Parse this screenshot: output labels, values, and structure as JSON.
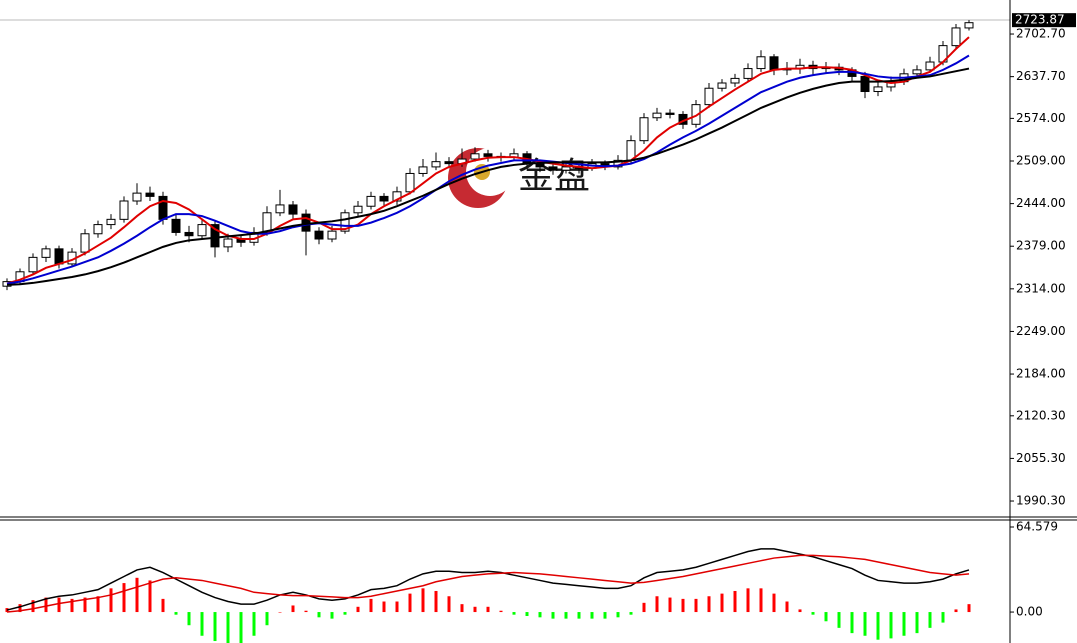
{
  "chart_data": [
    {
      "type": "candlestick",
      "current_price": 2723.87,
      "watermark": "金盘",
      "up_color": "#ffffff",
      "down_color": "#000000",
      "ylim": [
        1964.4,
        2724.1
      ],
      "yticks": [
        {
          "value": 2702.7,
          "label": "2702.70"
        },
        {
          "value": 2637.7,
          "label": "2637.70"
        },
        {
          "value": 2574,
          "label": "2574.00"
        },
        {
          "value": 2509,
          "label": "2509.00"
        },
        {
          "value": 2444,
          "label": "2444.00"
        },
        {
          "value": 2379,
          "label": "2379.00"
        },
        {
          "value": 2314,
          "label": "2314.00"
        },
        {
          "value": 2249,
          "label": "2249.00"
        },
        {
          "value": 2184,
          "label": "2184.00"
        },
        {
          "value": 2120.3,
          "label": "2120.30"
        },
        {
          "value": 2055.3,
          "label": "2055.30"
        },
        {
          "value": 1990.3,
          "label": "1990.30"
        }
      ],
      "candles": [
        [
          2318,
          2330,
          2312,
          2325
        ],
        [
          2325,
          2345,
          2320,
          2340
        ],
        [
          2340,
          2368,
          2335,
          2362
        ],
        [
          2362,
          2380,
          2355,
          2375
        ],
        [
          2375,
          2380,
          2345,
          2352
        ],
        [
          2352,
          2376,
          2348,
          2370
        ],
        [
          2370,
          2405,
          2365,
          2398
        ],
        [
          2398,
          2418,
          2392,
          2412
        ],
        [
          2412,
          2428,
          2405,
          2420
        ],
        [
          2420,
          2455,
          2415,
          2448
        ],
        [
          2448,
          2475,
          2442,
          2460
        ],
        [
          2460,
          2470,
          2448,
          2455
        ],
        [
          2455,
          2462,
          2412,
          2420
        ],
        [
          2420,
          2428,
          2395,
          2400
        ],
        [
          2400,
          2410,
          2385,
          2395
        ],
        [
          2395,
          2420,
          2390,
          2412
        ],
        [
          2412,
          2418,
          2362,
          2378
        ],
        [
          2378,
          2398,
          2370,
          2390
        ],
        [
          2390,
          2395,
          2378,
          2385
        ],
        [
          2385,
          2408,
          2380,
          2400
        ],
        [
          2400,
          2440,
          2395,
          2430
        ],
        [
          2430,
          2465,
          2425,
          2442
        ],
        [
          2442,
          2448,
          2420,
          2428
        ],
        [
          2428,
          2435,
          2365,
          2402
        ],
        [
          2402,
          2408,
          2382,
          2390
        ],
        [
          2390,
          2410,
          2385,
          2402
        ],
        [
          2402,
          2435,
          2398,
          2430
        ],
        [
          2430,
          2448,
          2425,
          2440
        ],
        [
          2440,
          2462,
          2435,
          2455
        ],
        [
          2455,
          2460,
          2440,
          2448
        ],
        [
          2448,
          2470,
          2442,
          2462
        ],
        [
          2462,
          2498,
          2458,
          2490
        ],
        [
          2490,
          2512,
          2485,
          2500
        ],
        [
          2500,
          2522,
          2495,
          2508
        ],
        [
          2508,
          2515,
          2498,
          2505
        ],
        [
          2505,
          2528,
          2500,
          2512
        ],
        [
          2512,
          2530,
          2508,
          2520
        ],
        [
          2520,
          2526,
          2508,
          2516
        ],
        [
          2516,
          2522,
          2508,
          2515
        ],
        [
          2515,
          2528,
          2510,
          2520
        ],
        [
          2520,
          2524,
          2500,
          2505
        ],
        [
          2505,
          2510,
          2492,
          2500
        ],
        [
          2500,
          2504,
          2488,
          2495
        ],
        [
          2495,
          2508,
          2490,
          2500
        ],
        [
          2500,
          2504,
          2490,
          2498
        ],
        [
          2498,
          2512,
          2494,
          2505
        ],
        [
          2505,
          2510,
          2495,
          2500
        ],
        [
          2500,
          2518,
          2496,
          2510
        ],
        [
          2510,
          2548,
          2506,
          2540
        ],
        [
          2540,
          2582,
          2535,
          2575
        ],
        [
          2575,
          2590,
          2570,
          2582
        ],
        [
          2582,
          2588,
          2574,
          2580
        ],
        [
          2580,
          2585,
          2558,
          2565
        ],
        [
          2565,
          2602,
          2560,
          2595
        ],
        [
          2595,
          2628,
          2590,
          2620
        ],
        [
          2620,
          2634,
          2615,
          2628
        ],
        [
          2628,
          2642,
          2622,
          2635
        ],
        [
          2635,
          2658,
          2630,
          2650
        ],
        [
          2650,
          2678,
          2645,
          2668
        ],
        [
          2668,
          2672,
          2640,
          2648
        ],
        [
          2648,
          2660,
          2640,
          2650
        ],
        [
          2650,
          2665,
          2642,
          2655
        ],
        [
          2655,
          2662,
          2640,
          2650
        ],
        [
          2650,
          2660,
          2642,
          2652
        ],
        [
          2652,
          2658,
          2640,
          2648
        ],
        [
          2648,
          2652,
          2630,
          2638
        ],
        [
          2638,
          2645,
          2605,
          2615
        ],
        [
          2615,
          2630,
          2608,
          2622
        ],
        [
          2622,
          2638,
          2615,
          2630
        ],
        [
          2630,
          2650,
          2625,
          2642
        ],
        [
          2642,
          2655,
          2638,
          2648
        ],
        [
          2648,
          2668,
          2644,
          2660
        ],
        [
          2660,
          2692,
          2655,
          2685
        ],
        [
          2685,
          2718,
          2680,
          2712
        ],
        [
          2712,
          2724,
          2708,
          2720
        ]
      ],
      "lines": [
        {
          "color": "#e00000",
          "values": [
            2322,
            2328,
            2336,
            2346,
            2352,
            2358,
            2368,
            2380,
            2392,
            2408,
            2425,
            2440,
            2448,
            2445,
            2435,
            2420,
            2405,
            2395,
            2390,
            2390,
            2398,
            2410,
            2420,
            2422,
            2415,
            2405,
            2405,
            2412,
            2428,
            2440,
            2450,
            2460,
            2475,
            2490,
            2500,
            2505,
            2510,
            2514,
            2515,
            2515,
            2512,
            2508,
            2505,
            2502,
            2500,
            2498,
            2500,
            2502,
            2510,
            2525,
            2545,
            2560,
            2570,
            2578,
            2592,
            2605,
            2618,
            2630,
            2642,
            2648,
            2650,
            2650,
            2652,
            2652,
            2651,
            2648,
            2640,
            2632,
            2628,
            2630,
            2638,
            2645,
            2660,
            2680,
            2698
          ]
        },
        {
          "color": "#0000d0",
          "values": [
            2322,
            2325,
            2330,
            2336,
            2342,
            2348,
            2355,
            2362,
            2372,
            2383,
            2395,
            2408,
            2420,
            2428,
            2428,
            2425,
            2418,
            2410,
            2402,
            2398,
            2398,
            2402,
            2408,
            2412,
            2414,
            2412,
            2410,
            2410,
            2415,
            2422,
            2430,
            2440,
            2452,
            2465,
            2478,
            2488,
            2496,
            2502,
            2506,
            2510,
            2510,
            2510,
            2508,
            2506,
            2504,
            2502,
            2501,
            2502,
            2505,
            2512,
            2522,
            2534,
            2545,
            2555,
            2566,
            2578,
            2590,
            2602,
            2614,
            2622,
            2630,
            2636,
            2640,
            2643,
            2645,
            2645,
            2642,
            2638,
            2636,
            2636,
            2638,
            2640,
            2648,
            2658,
            2670
          ]
        },
        {
          "color": "#000000",
          "values": [
            2320,
            2321,
            2323,
            2326,
            2329,
            2332,
            2336,
            2341,
            2347,
            2354,
            2362,
            2370,
            2378,
            2384,
            2388,
            2390,
            2392,
            2394,
            2396,
            2398,
            2402,
            2406,
            2410,
            2413,
            2415,
            2417,
            2420,
            2424,
            2428,
            2433,
            2440,
            2448,
            2456,
            2465,
            2474,
            2482,
            2489,
            2495,
            2500,
            2503,
            2505,
            2506,
            2507,
            2507,
            2507,
            2507,
            2507,
            2508,
            2510,
            2514,
            2520,
            2527,
            2534,
            2542,
            2551,
            2560,
            2570,
            2580,
            2590,
            2598,
            2606,
            2613,
            2619,
            2624,
            2628,
            2630,
            2630,
            2630,
            2631,
            2633,
            2636,
            2638,
            2642,
            2646,
            2650
          ]
        }
      ]
    },
    {
      "type": "macd",
      "positive_color": "#ff0000",
      "negative_color": "#00ff00",
      "ylim": [
        -23.5,
        69.9
      ],
      "yticks": [
        64.579,
        {
          "value": 0,
          "label": "0.00"
        }
      ],
      "histogram": [
        3,
        6,
        9,
        11,
        11,
        10,
        11,
        12,
        18,
        22,
        26,
        24,
        10,
        -2,
        -10,
        -18,
        -22,
        -24,
        -24,
        -18,
        -10,
        0,
        5,
        1,
        -4,
        -5,
        -2,
        4,
        10,
        8,
        8,
        14,
        18,
        16,
        12,
        6,
        4,
        4,
        1,
        -2,
        -3,
        -4,
        -5,
        -5,
        -5,
        -5,
        -5,
        -4,
        -2,
        7,
        12,
        11,
        10,
        10,
        12,
        14,
        16,
        18,
        18,
        14,
        8,
        2,
        -2,
        -7,
        -12,
        -16,
        -18,
        -21,
        -20,
        -18,
        -16,
        -12,
        -8,
        2,
        6
      ],
      "lines": [
        {
          "color": "#000000",
          "values": [
            1.5,
            4,
            7,
            10,
            12,
            13,
            15,
            17,
            22,
            27,
            32,
            34,
            30,
            25,
            20,
            15,
            11,
            8,
            6,
            6,
            9,
            13,
            15,
            13,
            10,
            9,
            10,
            13,
            17,
            18,
            20,
            25,
            29,
            31,
            31,
            30,
            30,
            31,
            30,
            28,
            26,
            24,
            22,
            21,
            20,
            19,
            18,
            18,
            20,
            26,
            30,
            31,
            32,
            34,
            37,
            40,
            43,
            46,
            48,
            48,
            46,
            44,
            42,
            39,
            36,
            33,
            28,
            24,
            23,
            22,
            22,
            23,
            25,
            29,
            32
          ]
        },
        {
          "color": "#e00000",
          "values": [
            0,
            1,
            2.5,
            4.5,
            6.5,
            8,
            9.5,
            11,
            13,
            16,
            19,
            22,
            25,
            26,
            25,
            24,
            22,
            20,
            18,
            15,
            14,
            13,
            12.5,
            12.5,
            12,
            11.5,
            11,
            11,
            12,
            14,
            16,
            18,
            20,
            23,
            25,
            27,
            28,
            29,
            29.5,
            30,
            29.5,
            29,
            28,
            27,
            26,
            25,
            24,
            23,
            22,
            22.5,
            24,
            25.5,
            27,
            29,
            31,
            33,
            35,
            37,
            39,
            41,
            42,
            43,
            43,
            42.5,
            42,
            41,
            40,
            38,
            36,
            34,
            32,
            30,
            29,
            28,
            29
          ]
        }
      ]
    }
  ]
}
